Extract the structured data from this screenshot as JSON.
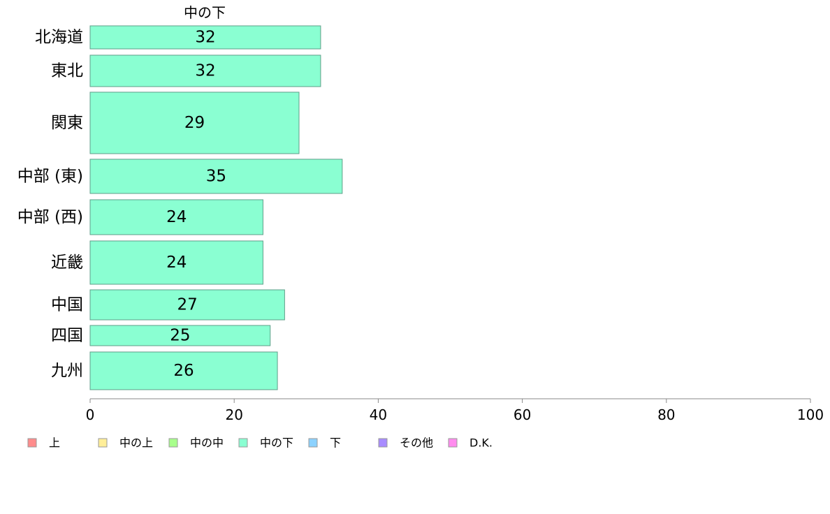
{
  "chart_data": {
    "type": "bar",
    "orientation": "horizontal",
    "series_title": "中の下",
    "categories": [
      "北海道",
      "東北",
      "関東",
      "中部 (東)",
      "中部 (西)",
      "近畿",
      "中国",
      "四国",
      "九州"
    ],
    "values": [
      32,
      32,
      29,
      35,
      24,
      24,
      27,
      25,
      26
    ],
    "xlim": [
      0,
      100
    ],
    "xticks": [
      0,
      20,
      40,
      60,
      80,
      100
    ],
    "grid": false,
    "bar_color": "#8affd2",
    "legend_position": "bottom",
    "legend": [
      {
        "label": "上",
        "color": "#ff8c8c"
      },
      {
        "label": "中の上",
        "color": "#ffee99"
      },
      {
        "label": "中の中",
        "color": "#a8ff8c"
      },
      {
        "label": "中の下",
        "color": "#8affd2"
      },
      {
        "label": "下",
        "color": "#8cd2ff"
      },
      {
        "label": "その他",
        "color": "#a88cff"
      },
      {
        "label": "D.K.",
        "color": "#ff8cee"
      }
    ]
  }
}
